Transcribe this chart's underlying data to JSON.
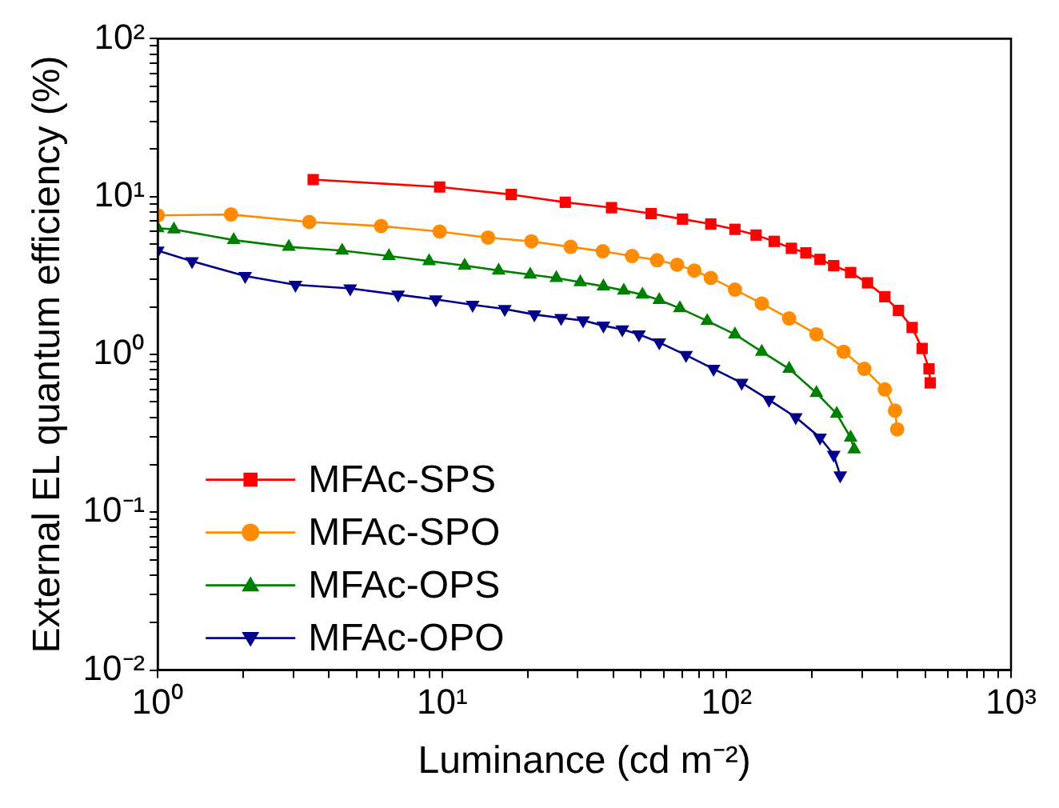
{
  "chart_data": {
    "type": "line",
    "xlabel": "Luminance (cd m⁻²)",
    "ylabel": "External EL quantum efficiency (%)",
    "log": "xy",
    "grid": false,
    "legend": "bottom left",
    "xlim": [
      1,
      1000
    ],
    "ylim": [
      0.01,
      100
    ],
    "xticks": [
      {
        "value": 1,
        "label": "10⁰"
      },
      {
        "value": 2,
        "label": null
      },
      {
        "value": 3,
        "label": null
      },
      {
        "value": 4,
        "label": null
      },
      {
        "value": 5,
        "label": null
      },
      {
        "value": 6,
        "label": null
      },
      {
        "value": 7,
        "label": null
      },
      {
        "value": 8,
        "label": null
      },
      {
        "value": 9,
        "label": null
      },
      {
        "value": 10,
        "label": "10¹"
      },
      {
        "value": 20,
        "label": null
      },
      {
        "value": 30,
        "label": null
      },
      {
        "value": 40,
        "label": null
      },
      {
        "value": 50,
        "label": null
      },
      {
        "value": 60,
        "label": null
      },
      {
        "value": 70,
        "label": null
      },
      {
        "value": 80,
        "label": null
      },
      {
        "value": 90,
        "label": null
      },
      {
        "value": 100,
        "label": "10²"
      },
      {
        "value": 200,
        "label": null
      },
      {
        "value": 300,
        "label": null
      },
      {
        "value": 400,
        "label": null
      },
      {
        "value": 500,
        "label": null
      },
      {
        "value": 600,
        "label": null
      },
      {
        "value": 700,
        "label": null
      },
      {
        "value": 800,
        "label": null
      },
      {
        "value": 900,
        "label": null
      },
      {
        "value": 1000,
        "label": "10³"
      }
    ],
    "yticks": [
      {
        "value": 0.01,
        "label": "10⁻²"
      },
      {
        "value": 0.02,
        "label": null
      },
      {
        "value": 0.03,
        "label": null
      },
      {
        "value": 0.04,
        "label": null
      },
      {
        "value": 0.05,
        "label": null
      },
      {
        "value": 0.06,
        "label": null
      },
      {
        "value": 0.07,
        "label": null
      },
      {
        "value": 0.08,
        "label": null
      },
      {
        "value": 0.09,
        "label": null
      },
      {
        "value": 0.1,
        "label": "10⁻¹"
      },
      {
        "value": 0.2,
        "label": null
      },
      {
        "value": 0.3,
        "label": null
      },
      {
        "value": 0.4,
        "label": null
      },
      {
        "value": 0.5,
        "label": null
      },
      {
        "value": 0.6,
        "label": null
      },
      {
        "value": 0.7,
        "label": null
      },
      {
        "value": 0.8,
        "label": null
      },
      {
        "value": 0.9,
        "label": null
      },
      {
        "value": 1,
        "label": "10⁰"
      },
      {
        "value": 2,
        "label": null
      },
      {
        "value": 3,
        "label": null
      },
      {
        "value": 4,
        "label": null
      },
      {
        "value": 5,
        "label": null
      },
      {
        "value": 6,
        "label": null
      },
      {
        "value": 7,
        "label": null
      },
      {
        "value": 8,
        "label": null
      },
      {
        "value": 9,
        "label": null
      },
      {
        "value": 10,
        "label": "10¹"
      },
      {
        "value": 20,
        "label": null
      },
      {
        "value": 30,
        "label": null
      },
      {
        "value": 40,
        "label": null
      },
      {
        "value": 50,
        "label": null
      },
      {
        "value": 60,
        "label": null
      },
      {
        "value": 70,
        "label": null
      },
      {
        "value": 80,
        "label": null
      },
      {
        "value": 90,
        "label": null
      },
      {
        "value": 100,
        "label": "10²"
      }
    ],
    "series": [
      {
        "name": "MFAc-SPS",
        "color": "#ff0000",
        "marker": "square",
        "x": [
          3.52,
          9.8,
          17.5,
          27.1,
          39.4,
          54.3,
          70,
          88,
          107,
          127,
          147,
          169,
          190,
          213,
          238,
          273,
          313,
          360,
          402,
          449,
          487,
          515,
          520
        ],
        "values": [
          12.8,
          11.5,
          10.3,
          9.2,
          8.5,
          7.8,
          7.2,
          6.7,
          6.2,
          5.7,
          5.2,
          4.7,
          4.4,
          4.0,
          3.65,
          3.3,
          2.84,
          2.32,
          1.9,
          1.48,
          1.09,
          0.81,
          0.66
        ]
      },
      {
        "name": "MFAc-SPO",
        "color": "#ff8c00",
        "marker": "circle",
        "x": [
          1,
          1.81,
          3.41,
          6.1,
          9.8,
          14.5,
          20.6,
          28.3,
          36.7,
          46.5,
          57,
          67,
          77,
          88,
          107,
          133,
          166,
          207,
          258,
          305,
          360,
          391,
          398
        ],
        "values": [
          7.6,
          7.7,
          6.9,
          6.5,
          6.0,
          5.5,
          5.2,
          4.8,
          4.5,
          4.2,
          3.95,
          3.7,
          3.4,
          3.05,
          2.57,
          2.1,
          1.69,
          1.34,
          1.04,
          0.81,
          0.6,
          0.44,
          0.335
        ]
      },
      {
        "name": "MFAc-OPS",
        "color": "#008000",
        "marker": "triangle",
        "x": [
          1,
          1.14,
          1.85,
          2.89,
          4.45,
          6.5,
          9.0,
          12.0,
          15.8,
          20.4,
          25.2,
          30.6,
          36.9,
          43.5,
          50.6,
          58,
          68.5,
          85.5,
          107,
          133,
          166,
          207,
          244,
          273,
          281
        ],
        "values": [
          6.3,
          6.2,
          5.3,
          4.8,
          4.55,
          4.2,
          3.9,
          3.65,
          3.4,
          3.2,
          3.05,
          2.87,
          2.7,
          2.54,
          2.39,
          2.21,
          1.96,
          1.63,
          1.34,
          1.04,
          0.81,
          0.57,
          0.42,
          0.297,
          0.25
        ]
      },
      {
        "name": "MFAc-OPO",
        "color": "#00008b",
        "marker": "triangle-down",
        "x": [
          1,
          1.32,
          2.03,
          3.05,
          4.75,
          7.0,
          9.5,
          12.8,
          16.6,
          21.1,
          26.2,
          31.3,
          36.9,
          43,
          49.2,
          58,
          72,
          90,
          113,
          141,
          175,
          213,
          238,
          251
        ],
        "values": [
          4.55,
          3.9,
          3.14,
          2.76,
          2.62,
          2.39,
          2.23,
          2.06,
          1.94,
          1.79,
          1.7,
          1.64,
          1.52,
          1.44,
          1.34,
          1.19,
          0.99,
          0.81,
          0.66,
          0.515,
          0.4,
          0.297,
          0.231,
          0.171
        ]
      }
    ]
  }
}
